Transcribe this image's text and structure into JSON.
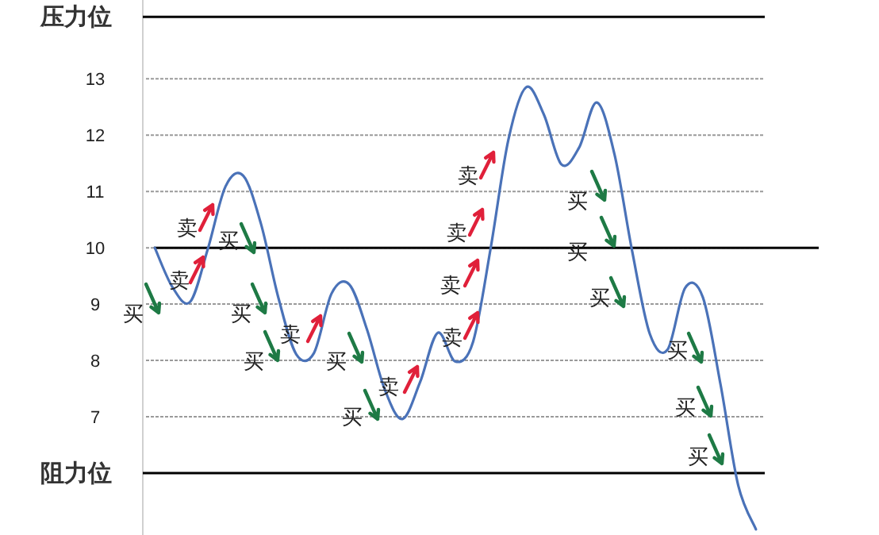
{
  "chart_data": {
    "type": "line",
    "categories": [
      null,
      null,
      null,
      null,
      null,
      null,
      null,
      null,
      null,
      null,
      null,
      null,
      null,
      null,
      null,
      null,
      null,
      null,
      null,
      null,
      null,
      null,
      null,
      null,
      null,
      null,
      null,
      null,
      null,
      null,
      null,
      null,
      null,
      null,
      null
    ],
    "series": [
      {
        "color": "#4a72b8",
        "values": [
          10.0,
          9.3,
          9.04,
          9.98,
          11.09,
          11.28,
          10.43,
          9.1,
          8.11,
          8.13,
          9.19,
          9.35,
          8.55,
          7.49,
          6.96,
          7.61,
          8.49,
          7.98,
          8.33,
          10.0,
          11.92,
          12.85,
          12.37,
          11.48,
          11.78,
          12.58,
          11.66,
          9.94,
          8.47,
          8.19,
          9.29,
          9.12,
          7.57,
          5.78,
          5.0
        ]
      }
    ],
    "ylim": [
      4.9,
      14.4
    ],
    "yticks": [
      7,
      8,
      9,
      10,
      11,
      12,
      13
    ],
    "grid": "y",
    "marker": "none",
    "line_style": "solid",
    "ref_lines": [
      {
        "axis": "y",
        "value": 14.1,
        "label": "压力位",
        "color": "#000000"
      },
      {
        "axis": "y",
        "value": 10,
        "label": null,
        "color": "#000000"
      },
      {
        "axis": "y",
        "value": 6.0,
        "label": "阻力位",
        "color": "#000000"
      }
    ],
    "annotations": [
      "买",
      "卖",
      "卖",
      "买",
      "买",
      "买",
      "卖",
      "买",
      "买",
      "卖",
      "卖",
      "卖",
      "卖",
      "卖",
      "买",
      "买",
      "买",
      "买",
      "买",
      "买"
    ]
  }
}
